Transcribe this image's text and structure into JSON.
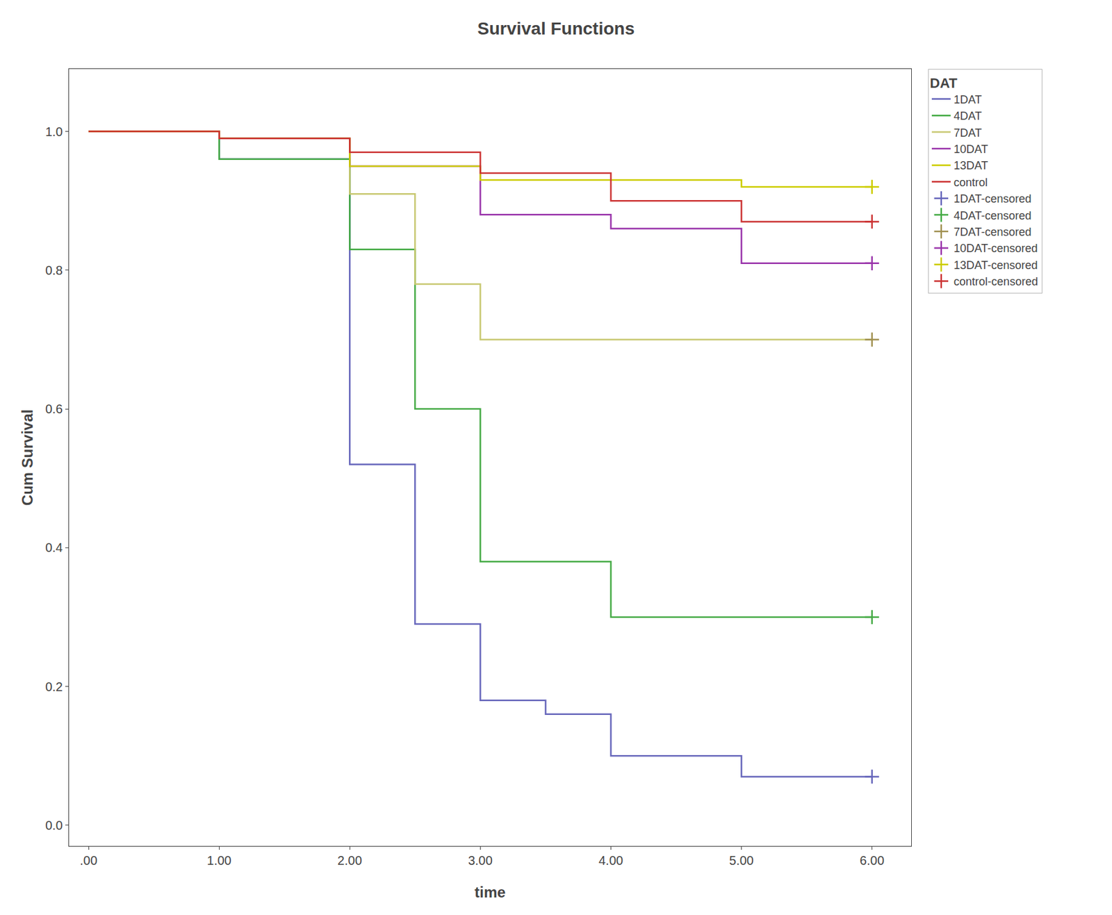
{
  "chart_data": {
    "type": "line",
    "title": "Survival Functions",
    "xlabel": "time",
    "ylabel": "Cum Survival",
    "legend_title": "DAT",
    "legend": "right",
    "grid": false,
    "xlim": [
      -0.15,
      6.3
    ],
    "ylim": [
      -0.03,
      1.09
    ],
    "xticks": [
      {
        "value": 0.0,
        "label": ".00"
      },
      {
        "value": 1.0,
        "label": "1.00"
      },
      {
        "value": 2.0,
        "label": "2.00"
      },
      {
        "value": 3.0,
        "label": "3.00"
      },
      {
        "value": 4.0,
        "label": "4.00"
      },
      {
        "value": 5.0,
        "label": "5.00"
      },
      {
        "value": 6.0,
        "label": "6.00"
      }
    ],
    "yticks": [
      {
        "value": 0.0,
        "label": "0.0"
      },
      {
        "value": 0.2,
        "label": "0.2"
      },
      {
        "value": 0.4,
        "label": "0.4"
      },
      {
        "value": 0.6,
        "label": "0.6"
      },
      {
        "value": 0.8,
        "label": "0.8"
      },
      {
        "value": 1.0,
        "label": "1.0"
      }
    ],
    "series": [
      {
        "name": "1DAT",
        "type": "line",
        "color": "#6666bb",
        "x": [
          0.0,
          1.0,
          1.0,
          2.0,
          2.0,
          2.5,
          2.5,
          3.0,
          3.0,
          3.5,
          3.5,
          4.0,
          4.0,
          5.0,
          5.0,
          6.0
        ],
        "values": [
          1.0,
          1.0,
          0.96,
          0.96,
          0.52,
          0.52,
          0.29,
          0.29,
          0.18,
          0.18,
          0.16,
          0.16,
          0.1,
          0.1,
          0.07,
          0.07
        ]
      },
      {
        "name": "4DAT",
        "type": "line",
        "color": "#44aa44",
        "x": [
          0.0,
          1.0,
          1.0,
          2.0,
          2.0,
          2.5,
          2.5,
          3.0,
          3.0,
          4.0,
          4.0,
          5.0,
          5.0,
          6.0
        ],
        "values": [
          1.0,
          1.0,
          0.96,
          0.96,
          0.83,
          0.83,
          0.6,
          0.6,
          0.38,
          0.38,
          0.3,
          0.3,
          0.3,
          0.3
        ]
      },
      {
        "name": "7DAT",
        "type": "line",
        "color": "#c8c870",
        "x": [
          0.0,
          1.0,
          1.0,
          2.0,
          2.0,
          2.5,
          2.5,
          3.0,
          3.0,
          4.5,
          4.5,
          6.0
        ],
        "values": [
          1.0,
          1.0,
          0.99,
          0.99,
          0.91,
          0.91,
          0.78,
          0.78,
          0.7,
          0.7,
          0.7,
          0.7
        ]
      },
      {
        "name": "10DAT",
        "type": "line",
        "color": "#9933aa",
        "x": [
          0.0,
          1.0,
          1.0,
          2.0,
          2.0,
          3.0,
          3.0,
          4.0,
          4.0,
          5.0,
          5.0,
          6.0
        ],
        "values": [
          1.0,
          1.0,
          0.99,
          0.99,
          0.95,
          0.95,
          0.88,
          0.88,
          0.86,
          0.86,
          0.81,
          0.81
        ]
      },
      {
        "name": "13DAT",
        "type": "line",
        "color": "#cccc00",
        "x": [
          0.0,
          1.0,
          1.0,
          2.0,
          2.0,
          3.0,
          3.0,
          5.0,
          5.0,
          6.0
        ],
        "values": [
          1.0,
          1.0,
          0.99,
          0.99,
          0.95,
          0.95,
          0.93,
          0.93,
          0.92,
          0.92
        ]
      },
      {
        "name": "control",
        "type": "line",
        "color": "#cc3333",
        "x": [
          0.0,
          1.0,
          1.0,
          2.0,
          2.0,
          3.0,
          3.0,
          4.0,
          4.0,
          5.0,
          5.0,
          6.0
        ],
        "values": [
          1.0,
          1.0,
          0.99,
          0.99,
          0.97,
          0.97,
          0.94,
          0.94,
          0.9,
          0.9,
          0.87,
          0.87
        ]
      },
      {
        "name": "1DAT-censored",
        "type": "scatter",
        "marker": "plus",
        "color": "#6666bb",
        "x": [
          6.0
        ],
        "values": [
          0.07
        ]
      },
      {
        "name": "4DAT-censored",
        "type": "scatter",
        "marker": "plus",
        "color": "#44aa44",
        "x": [
          6.0
        ],
        "values": [
          0.3
        ]
      },
      {
        "name": "7DAT-censored",
        "type": "scatter",
        "marker": "plus",
        "color": "#a09050",
        "x": [
          6.0
        ],
        "values": [
          0.7
        ]
      },
      {
        "name": "10DAT-censored",
        "type": "scatter",
        "marker": "plus",
        "color": "#9933aa",
        "x": [
          6.0
        ],
        "values": [
          0.81
        ]
      },
      {
        "name": "13DAT-censored",
        "type": "scatter",
        "marker": "plus",
        "color": "#cccc00",
        "x": [
          6.0
        ],
        "values": [
          0.92
        ]
      },
      {
        "name": "control-censored",
        "type": "scatter",
        "marker": "plus",
        "color": "#cc3333",
        "x": [
          6.0
        ],
        "values": [
          0.87
        ]
      }
    ]
  }
}
